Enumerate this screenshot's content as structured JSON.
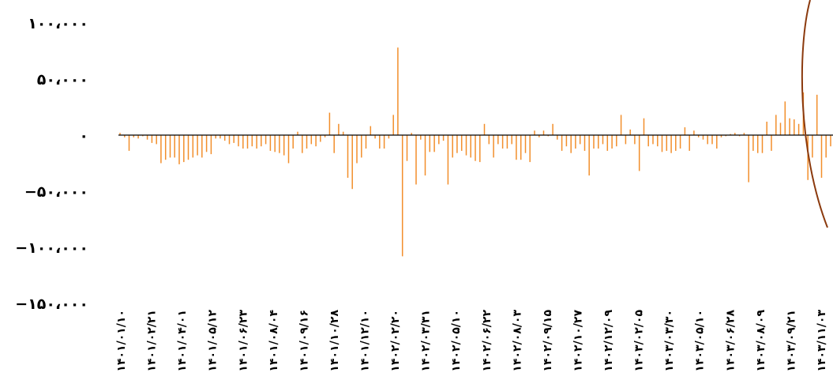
{
  "chart_data": {
    "type": "bar",
    "title": "",
    "xlabel": "",
    "ylabel": "",
    "ylim": [
      -150000,
      100000
    ],
    "grid": false,
    "bar_color": "#f28e2b",
    "zero_line_color": "#000000",
    "highlight_color": "#8b3a0e",
    "y_ticks": [
      {
        "value": 100000,
        "label": "۱۰۰،۰۰۰"
      },
      {
        "value": 50000,
        "label": "۵۰،۰۰۰"
      },
      {
        "value": 0,
        "label": "۰"
      },
      {
        "value": -50000,
        "label": "−۵۰،۰۰۰"
      },
      {
        "value": -100000,
        "label": "−۱۰۰،۰۰۰"
      },
      {
        "value": -150000,
        "label": "−۱۵۰،۰۰۰"
      }
    ],
    "x_tick_labels": [
      "۱۴۰۱/۰۱/۱۰",
      "۱۴۰۱/۰۲/۲۱",
      "۱۴۰۱/۰۴/۰۱",
      "۱۴۰۱/۰۵/۱۲",
      "۱۴۰۱/۰۶/۲۳",
      "۱۴۰۱/۰۸/۰۴",
      "۱۴۰۱/۰۹/۱۶",
      "۱۴۰۱/۱۰/۲۸",
      "۱۴۰۱/۱۲/۱۰",
      "۱۴۰۲/۰۲/۲۰",
      "۱۴۰۲/۰۳/۳۱",
      "۱۴۰۲/۰۵/۱۰",
      "۱۴۰۲/۰۶/۲۲",
      "۱۴۰۲/۰۸/۰۳",
      "۱۴۰۲/۰۹/۱۵",
      "۱۴۰۲/۱۰/۲۷",
      "۱۴۰۲/۱۲/۰۹",
      "۱۴۰۳/۰۲/۰۵",
      "۱۴۰۳/۰۳/۳۰",
      "۱۴۰۳/۰۵/۱۰",
      "۱۴۰۳/۰۶/۲۸",
      "۱۴۰۳/۰۸/۰۹",
      "۱۴۰۳/۰۹/۲۱",
      "۱۴۰۳/۱۱/۰۳"
    ],
    "values": [
      2000,
      -2000,
      -14000,
      -2000,
      -3000,
      -1000,
      -4000,
      -7000,
      -8000,
      -25000,
      -22000,
      -20000,
      -20000,
      -26000,
      -24000,
      -22000,
      -20000,
      -18000,
      -20000,
      -15000,
      -17000,
      -3000,
      -3000,
      -5000,
      -8000,
      -7000,
      -10000,
      -12000,
      -12000,
      -10000,
      -12000,
      -10000,
      -8000,
      -14000,
      -15000,
      -16000,
      -18000,
      -25000,
      -12000,
      3000,
      -16000,
      -12000,
      -8000,
      -10000,
      -6000,
      -2000,
      20000,
      -16000,
      10000,
      3000,
      -38000,
      -48000,
      -25000,
      -20000,
      -12000,
      8000,
      -3000,
      -12000,
      -12000,
      -3000,
      18000,
      78000,
      -108000,
      -23000,
      2000,
      -44000,
      -4000,
      -36000,
      -15000,
      -15000,
      -8000,
      -5000,
      -44000,
      -20000,
      -16000,
      -14000,
      -18000,
      -20000,
      -23000,
      -24000,
      10000,
      -8000,
      -20000,
      -8000,
      -12000,
      -12000,
      -8000,
      -22000,
      -22000,
      -16000,
      -24000,
      4000,
      -2000,
      4000,
      -1000,
      10000,
      -4000,
      -14000,
      -10000,
      -16000,
      -12000,
      -8000,
      -14000,
      -36000,
      -12000,
      -12000,
      -8000,
      -14000,
      -12000,
      -10000,
      18000,
      -8000,
      5000,
      -8000,
      -32000,
      15000,
      -10000,
      -8000,
      -10000,
      -15000,
      -14000,
      -16000,
      -14000,
      -12000,
      7000,
      -14000,
      4000,
      -2000,
      -4000,
      -8000,
      -8000,
      -12000,
      -2000,
      -1000,
      1000,
      2000,
      -1000,
      2000,
      -42000,
      -14000,
      -16000,
      -16000,
      12000,
      -14000,
      18000,
      11000,
      30000,
      15000,
      14000,
      10000,
      38000,
      -40000,
      -20000,
      36000,
      -38000,
      -20000,
      -10000
    ]
  }
}
